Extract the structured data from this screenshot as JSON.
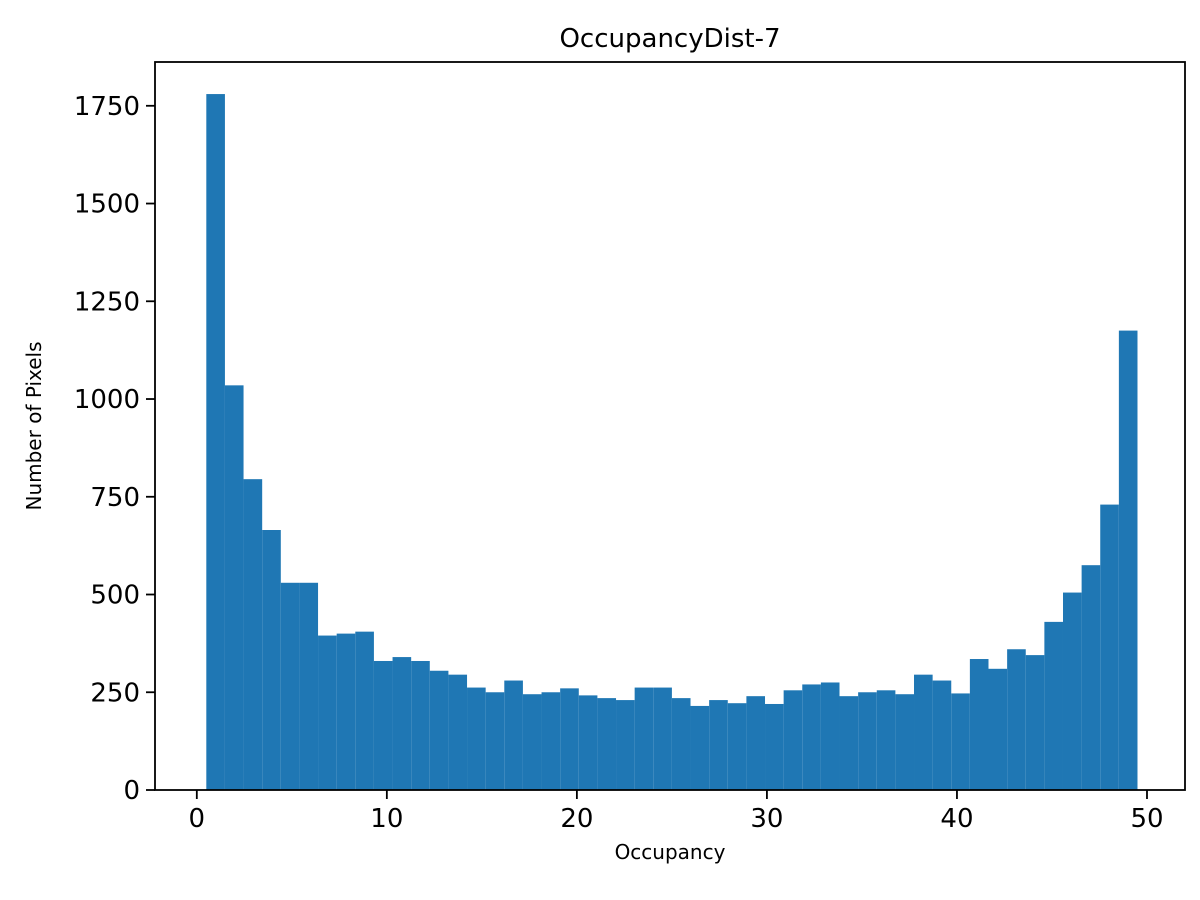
{
  "chart_data": {
    "type": "bar",
    "subtype": "histogram",
    "title": "OccupancyDist-7",
    "xlabel": "Occupancy",
    "ylabel": "Number of Pixels",
    "bar_color": "#1f77b4",
    "bin_start": 0.5,
    "bin_end": 49.5,
    "values": [
      1780,
      1035,
      795,
      665,
      530,
      530,
      395,
      400,
      405,
      330,
      340,
      330,
      305,
      295,
      262,
      250,
      280,
      245,
      250,
      260,
      242,
      235,
      230,
      262,
      262,
      235,
      215,
      230,
      222,
      240,
      220,
      255,
      270,
      275,
      240,
      250,
      255,
      245,
      295,
      280,
      247,
      335,
      310,
      360,
      345,
      430,
      505,
      575,
      730,
      1175
    ],
    "axes": {
      "xlim": [
        -2.2,
        52.0
      ],
      "ylim": [
        0,
        1862
      ],
      "xticks": [
        0,
        10,
        20,
        30,
        40,
        50
      ],
      "yticks": [
        0,
        250,
        500,
        750,
        1000,
        1250,
        1500,
        1750
      ],
      "grid": false,
      "legend": "none"
    }
  }
}
